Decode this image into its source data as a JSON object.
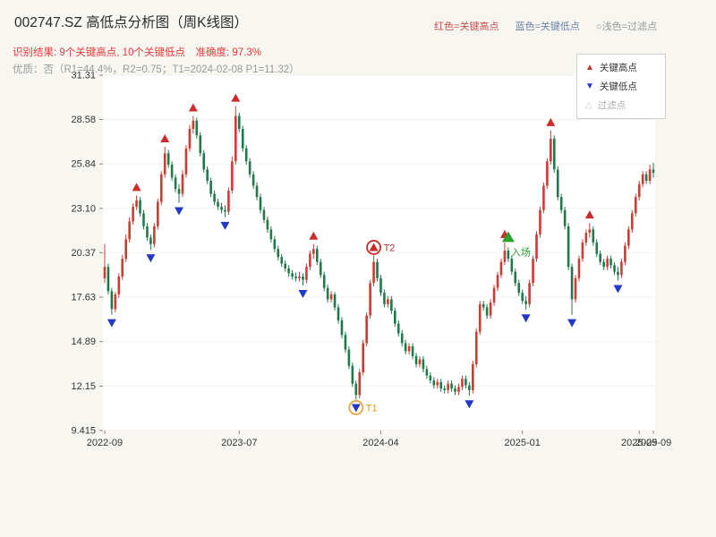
{
  "header": {
    "title": "002747.SZ 高低点分析图（周K线图）",
    "legend_top": [
      {
        "label": "红色=关键高点",
        "color": "#c0504d"
      },
      {
        "label": "蓝色=关键低点",
        "color": "#6d82a8"
      },
      {
        "label": "○浅色=过滤点",
        "color": "#999999"
      }
    ],
    "result_line": "识别结果: 9个关键高点, 10个关键低点　准确度: 97.3%",
    "quality_line": "优质：否（R1=44.4%，R2=0.75；T1=2024-02-08 P1=11.32）"
  },
  "legend_box": {
    "items": [
      {
        "symbol": "▲",
        "label": "关键高点",
        "color": "#cc2b2b",
        "text_color": "#333333"
      },
      {
        "symbol": "▼",
        "label": "关键低点",
        "color": "#2438c8",
        "text_color": "#333333"
      },
      {
        "symbol": "△",
        "label": "过滤点",
        "color": "#c9c9c9",
        "text_color": "#aaaaaa"
      }
    ]
  },
  "chart_data": {
    "type": "candlestick",
    "title": "002747.SZ 高低点分析图（周K线图）",
    "timeframe": "weekly",
    "ylim": [
      9.415,
      31.31
    ],
    "y_ticks": [
      31.31,
      28.58,
      25.84,
      23.1,
      20.37,
      17.63,
      14.89,
      12.15,
      9.415
    ],
    "y_tick_labels": [
      "31.31",
      "28.58",
      "25.84",
      "23.10",
      "20.37",
      "17.63",
      "14.89",
      "12.15",
      "9.415"
    ],
    "x_ticks": [
      {
        "label": "2022-09",
        "week": 0
      },
      {
        "label": "2023-07",
        "week": 38
      },
      {
        "label": "2024-04",
        "week": 78
      },
      {
        "label": "2025-01",
        "week": 118
      },
      {
        "label": "2025-09",
        "week": 151
      },
      {
        "label": "2025-09",
        "week": 155
      }
    ],
    "colors": {
      "up": "#cf3b32",
      "down": "#1f7a4a",
      "key_high": "#cc2b2b",
      "key_low": "#2438c8",
      "entry": "#2ca02c"
    },
    "candles": [
      [
        18.8,
        20.9,
        18.5,
        19.5
      ],
      [
        19.5,
        19.7,
        17.8,
        18.0
      ],
      [
        18.0,
        18.2,
        16.55,
        16.9
      ],
      [
        16.9,
        17.95,
        16.7,
        17.8
      ],
      [
        17.8,
        19.1,
        17.6,
        18.9
      ],
      [
        18.9,
        20.25,
        18.7,
        20.0
      ],
      [
        20.0,
        21.5,
        19.8,
        21.2
      ],
      [
        21.2,
        22.55,
        21.0,
        22.3
      ],
      [
        22.3,
        23.4,
        22.1,
        23.2
      ],
      [
        23.2,
        23.9,
        23.0,
        23.6
      ],
      [
        23.6,
        23.8,
        22.6,
        22.8
      ],
      [
        22.8,
        23.0,
        21.8,
        22.0
      ],
      [
        22.0,
        22.2,
        21.1,
        21.3
      ],
      [
        21.3,
        21.5,
        20.55,
        20.9
      ],
      [
        20.9,
        22.2,
        20.7,
        22.0
      ],
      [
        22.0,
        23.7,
        21.8,
        23.5
      ],
      [
        23.5,
        25.4,
        23.3,
        25.2
      ],
      [
        25.2,
        26.9,
        25.0,
        26.5
      ],
      [
        26.5,
        26.7,
        25.6,
        25.8
      ],
      [
        25.8,
        26.0,
        24.8,
        25.0
      ],
      [
        25.0,
        25.2,
        24.1,
        24.3
      ],
      [
        24.3,
        24.6,
        23.45,
        24.0
      ],
      [
        24.0,
        25.45,
        23.8,
        25.2
      ],
      [
        25.2,
        27.0,
        25.0,
        26.8
      ],
      [
        26.8,
        28.25,
        26.6,
        28.0
      ],
      [
        28.0,
        28.8,
        27.7,
        28.5
      ],
      [
        28.5,
        28.7,
        27.4,
        27.6
      ],
      [
        27.6,
        27.8,
        26.3,
        26.5
      ],
      [
        26.5,
        26.7,
        25.3,
        25.5
      ],
      [
        25.5,
        25.7,
        24.6,
        24.8
      ],
      [
        24.8,
        25.0,
        23.8,
        24.0
      ],
      [
        24.0,
        24.2,
        23.3,
        23.5
      ],
      [
        23.5,
        23.7,
        23.0,
        23.2
      ],
      [
        23.2,
        23.45,
        22.8,
        23.0
      ],
      [
        23.0,
        23.3,
        22.55,
        22.9
      ],
      [
        22.9,
        24.4,
        22.7,
        24.2
      ],
      [
        24.2,
        26.3,
        24.0,
        26.0
      ],
      [
        26.0,
        29.4,
        25.8,
        28.8
      ],
      [
        28.8,
        29.0,
        27.8,
        28.0
      ],
      [
        28.0,
        28.2,
        26.6,
        26.8
      ],
      [
        26.8,
        27.0,
        25.8,
        26.0
      ],
      [
        26.0,
        26.2,
        25.0,
        25.2
      ],
      [
        25.2,
        25.4,
        24.3,
        24.5
      ],
      [
        24.5,
        24.7,
        23.6,
        23.8
      ],
      [
        23.8,
        24.0,
        22.8,
        23.0
      ],
      [
        23.0,
        23.2,
        22.2,
        22.4
      ],
      [
        22.4,
        22.6,
        21.6,
        21.8
      ],
      [
        21.8,
        22.0,
        21.0,
        21.2
      ],
      [
        21.2,
        21.4,
        20.4,
        20.6
      ],
      [
        20.6,
        20.8,
        19.9,
        20.1
      ],
      [
        20.1,
        20.3,
        19.5,
        19.7
      ],
      [
        19.7,
        19.9,
        19.2,
        19.4
      ],
      [
        19.4,
        19.6,
        18.9,
        19.1
      ],
      [
        19.1,
        19.3,
        18.7,
        18.9
      ],
      [
        18.9,
        19.15,
        18.6,
        18.8
      ],
      [
        18.8,
        19.2,
        18.6,
        18.9
      ],
      [
        18.9,
        19.1,
        18.35,
        18.7
      ],
      [
        18.7,
        19.7,
        18.5,
        19.5
      ],
      [
        19.5,
        20.5,
        19.3,
        20.3
      ],
      [
        20.3,
        20.9,
        20.0,
        20.6
      ],
      [
        20.6,
        20.8,
        19.6,
        19.8
      ],
      [
        19.8,
        20.0,
        18.8,
        19.0
      ],
      [
        19.0,
        19.2,
        18.0,
        18.2
      ],
      [
        18.2,
        18.4,
        17.3,
        17.5
      ],
      [
        17.5,
        18.0,
        17.3,
        17.8
      ],
      [
        17.8,
        17.95,
        16.8,
        17.0
      ],
      [
        17.0,
        17.2,
        16.0,
        16.2
      ],
      [
        16.2,
        16.4,
        15.1,
        15.3
      ],
      [
        15.3,
        15.5,
        14.2,
        14.4
      ],
      [
        14.4,
        14.6,
        13.2,
        13.4
      ],
      [
        13.4,
        13.6,
        12.1,
        12.3
      ],
      [
        12.3,
        12.5,
        11.32,
        11.6
      ],
      [
        11.6,
        13.2,
        11.4,
        13.0
      ],
      [
        13.0,
        15.0,
        12.8,
        14.8
      ],
      [
        14.8,
        16.7,
        14.6,
        16.5
      ],
      [
        16.5,
        18.7,
        16.3,
        18.5
      ],
      [
        18.5,
        20.2,
        18.3,
        19.8
      ],
      [
        19.8,
        20.0,
        18.6,
        18.8
      ],
      [
        18.8,
        19.0,
        17.7,
        17.9
      ],
      [
        17.9,
        18.1,
        17.0,
        17.2
      ],
      [
        17.2,
        17.7,
        17.0,
        17.5
      ],
      [
        17.5,
        17.7,
        16.6,
        16.8
      ],
      [
        16.8,
        17.0,
        15.8,
        16.0
      ],
      [
        16.0,
        16.2,
        15.2,
        15.4
      ],
      [
        15.4,
        15.6,
        14.6,
        14.8
      ],
      [
        14.8,
        15.0,
        14.1,
        14.3
      ],
      [
        14.3,
        14.8,
        14.1,
        14.6
      ],
      [
        14.6,
        14.8,
        13.8,
        14.0
      ],
      [
        14.0,
        14.2,
        13.3,
        13.5
      ],
      [
        13.5,
        14.0,
        13.3,
        13.8
      ],
      [
        13.8,
        14.0,
        13.0,
        13.2
      ],
      [
        13.2,
        13.4,
        12.6,
        12.8
      ],
      [
        12.8,
        13.0,
        12.3,
        12.5
      ],
      [
        12.5,
        12.7,
        12.0,
        12.2
      ],
      [
        12.2,
        12.6,
        12.0,
        12.4
      ],
      [
        12.4,
        12.6,
        11.8,
        12.0
      ],
      [
        12.0,
        12.2,
        11.7,
        11.9
      ],
      [
        11.9,
        12.5,
        11.7,
        12.3
      ],
      [
        12.3,
        12.5,
        11.8,
        12.0
      ],
      [
        12.0,
        12.2,
        11.6,
        11.8
      ],
      [
        11.8,
        12.3,
        11.6,
        12.1
      ],
      [
        12.1,
        12.8,
        11.9,
        12.6
      ],
      [
        12.6,
        12.8,
        12.0,
        12.2
      ],
      [
        12.2,
        12.4,
        11.55,
        11.9
      ],
      [
        11.9,
        13.7,
        11.7,
        13.5
      ],
      [
        13.5,
        15.7,
        13.3,
        15.5
      ],
      [
        15.5,
        17.4,
        15.3,
        17.2
      ],
      [
        17.2,
        17.4,
        16.8,
        17.0
      ],
      [
        17.0,
        17.2,
        16.3,
        16.5
      ],
      [
        16.5,
        17.5,
        16.3,
        17.3
      ],
      [
        17.3,
        18.4,
        17.1,
        18.2
      ],
      [
        18.2,
        19.2,
        18.0,
        19.0
      ],
      [
        19.0,
        20.0,
        18.8,
        19.8
      ],
      [
        19.8,
        21.0,
        19.6,
        20.5
      ],
      [
        20.5,
        20.7,
        19.8,
        20.0
      ],
      [
        20.0,
        20.2,
        19.0,
        19.2
      ],
      [
        19.2,
        19.4,
        18.3,
        18.5
      ],
      [
        18.5,
        18.7,
        17.7,
        17.9
      ],
      [
        17.9,
        18.1,
        17.2,
        17.4
      ],
      [
        17.4,
        17.7,
        16.85,
        17.2
      ],
      [
        17.2,
        18.7,
        17.0,
        18.5
      ],
      [
        18.5,
        20.2,
        18.3,
        20.0
      ],
      [
        20.0,
        21.7,
        19.8,
        21.5
      ],
      [
        21.5,
        23.2,
        21.3,
        23.0
      ],
      [
        23.0,
        24.7,
        22.8,
        24.5
      ],
      [
        24.5,
        26.2,
        24.3,
        26.0
      ],
      [
        26.0,
        27.9,
        25.8,
        27.4
      ],
      [
        27.4,
        27.6,
        25.3,
        25.5
      ],
      [
        25.5,
        25.7,
        23.6,
        23.8
      ],
      [
        23.8,
        24.0,
        22.8,
        23.0
      ],
      [
        23.0,
        23.2,
        21.8,
        22.0
      ],
      [
        22.0,
        22.2,
        19.3,
        19.5
      ],
      [
        19.5,
        19.7,
        16.55,
        17.5
      ],
      [
        17.5,
        19.0,
        17.3,
        18.8
      ],
      [
        18.8,
        20.2,
        18.6,
        20.0
      ],
      [
        20.0,
        21.2,
        19.8,
        21.0
      ],
      [
        21.0,
        21.8,
        20.8,
        21.6
      ],
      [
        21.6,
        22.2,
        21.3,
        21.8
      ],
      [
        21.8,
        22.0,
        20.8,
        21.0
      ],
      [
        21.0,
        21.2,
        20.1,
        20.3
      ],
      [
        20.3,
        20.5,
        19.6,
        19.8
      ],
      [
        19.8,
        20.0,
        19.3,
        19.5
      ],
      [
        19.5,
        20.2,
        19.3,
        20.0
      ],
      [
        20.0,
        20.2,
        19.4,
        19.6
      ],
      [
        19.6,
        19.8,
        19.0,
        19.2
      ],
      [
        19.2,
        19.5,
        18.65,
        19.0
      ],
      [
        19.0,
        20.0,
        18.8,
        19.8
      ],
      [
        19.8,
        21.0,
        19.6,
        20.8
      ],
      [
        20.8,
        22.0,
        20.6,
        21.8
      ],
      [
        21.8,
        23.0,
        21.6,
        22.8
      ],
      [
        22.8,
        24.0,
        22.6,
        23.8
      ],
      [
        23.8,
        24.8,
        23.6,
        24.6
      ],
      [
        24.6,
        25.4,
        24.4,
        25.2
      ],
      [
        25.2,
        25.4,
        24.6,
        24.8
      ],
      [
        24.8,
        25.8,
        24.6,
        25.5
      ],
      [
        25.5,
        25.9,
        25.0,
        25.3
      ]
    ],
    "key_high_weeks": [
      9,
      17,
      25,
      37,
      59,
      76,
      113,
      126,
      137
    ],
    "key_low_weeks": [
      2,
      13,
      21,
      34,
      56,
      71,
      103,
      119,
      132,
      145
    ],
    "annotations": [
      {
        "week": 71,
        "label": "T1",
        "price": 11.32,
        "position": "low",
        "circle_color": "#f0a43c",
        "label_color": "#e8940a"
      },
      {
        "week": 76,
        "label": "T2",
        "price": 20.2,
        "position": "high",
        "circle_color": "#cc2b2b",
        "label_color": "#cc2b2b"
      },
      {
        "week": 114,
        "label": "入场",
        "price": 20.7,
        "type": "entry",
        "color": "#2ca02c"
      }
    ]
  }
}
